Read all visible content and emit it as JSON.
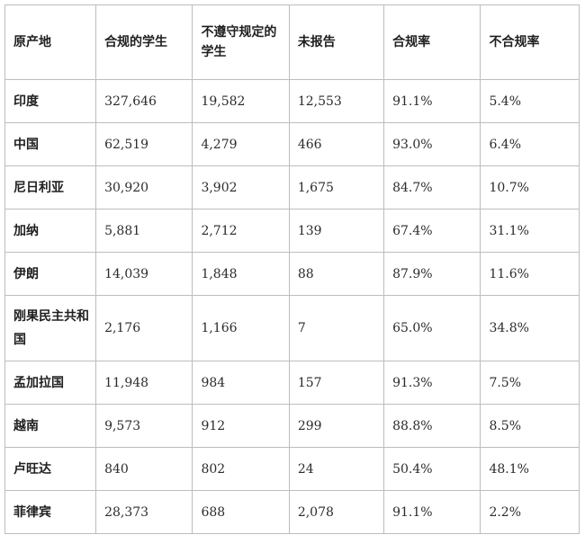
{
  "headers": [
    "原产地",
    "合规的学生",
    "不遵守规定的学生",
    "未报告",
    "合规率",
    "不合规率"
  ],
  "rows": [
    [
      "印度",
      "327,646",
      "19,582",
      "12,553",
      "91.1%",
      "5.4%"
    ],
    [
      "中国",
      "62,519",
      "4,279",
      "466",
      "93.0%",
      "6.4%"
    ],
    [
      "尼日利亚",
      "30,920",
      "3,902",
      "1,675",
      "84.7%",
      "10.7%"
    ],
    [
      "加纳",
      "5,881",
      "2,712",
      "139",
      "67.4%",
      "31.1%"
    ],
    [
      "伊朗",
      "14,039",
      "1,848",
      "88",
      "87.9%",
      "11.6%"
    ],
    [
      "刚果民主共和国",
      "2,176",
      "1,166",
      "7",
      "65.0%",
      "34.8%"
    ],
    [
      "孟加拉国",
      "11,948",
      "984",
      "157",
      "91.3%",
      "7.5%"
    ],
    [
      "越南",
      "9,573",
      "912",
      "299",
      "88.8%",
      "8.5%"
    ],
    [
      "卢旺达",
      "840",
      "802",
      "24",
      "50.4%",
      "48.1%"
    ],
    [
      "菲律宾",
      "28,373",
      "688",
      "2,078",
      "91.1%",
      "2.2%"
    ]
  ]
}
